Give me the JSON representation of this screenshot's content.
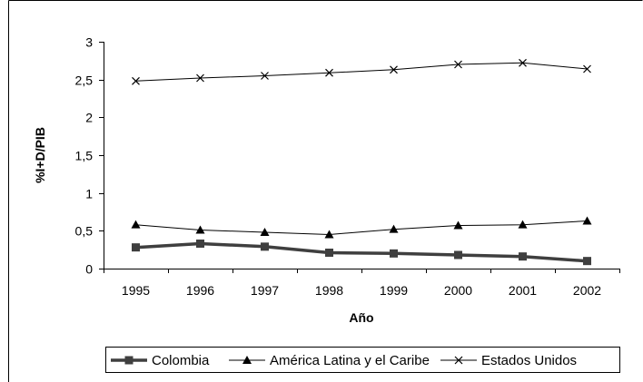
{
  "chart_data": {
    "type": "line",
    "title": "",
    "xlabel": "Año",
    "ylabel": "%I+D/PIB",
    "categories": [
      "1995",
      "1996",
      "1997",
      "1998",
      "1999",
      "2000",
      "2001",
      "2002"
    ],
    "ylim": [
      0,
      3
    ],
    "yticks": [
      "0",
      "0,5",
      "1",
      "1,5",
      "2",
      "2,5",
      "3"
    ],
    "ytick_values": [
      0,
      0.5,
      1,
      1.5,
      2,
      2.5,
      3
    ],
    "grid": false,
    "legend_position": "bottom",
    "series": [
      {
        "name": "Colombia",
        "values": [
          0.28,
          0.33,
          0.29,
          0.21,
          0.2,
          0.18,
          0.16,
          0.1
        ],
        "marker": "square",
        "color": "#3f3f3f"
      },
      {
        "name": "América Latina y el Caribe",
        "values": [
          0.58,
          0.51,
          0.48,
          0.45,
          0.52,
          0.57,
          0.58,
          0.63
        ],
        "marker": "triangle",
        "color": "#000000"
      },
      {
        "name": "Estados Unidos",
        "values": [
          2.48,
          2.52,
          2.55,
          2.59,
          2.63,
          2.7,
          2.72,
          2.64
        ],
        "marker": "x",
        "color": "#000000"
      }
    ]
  }
}
